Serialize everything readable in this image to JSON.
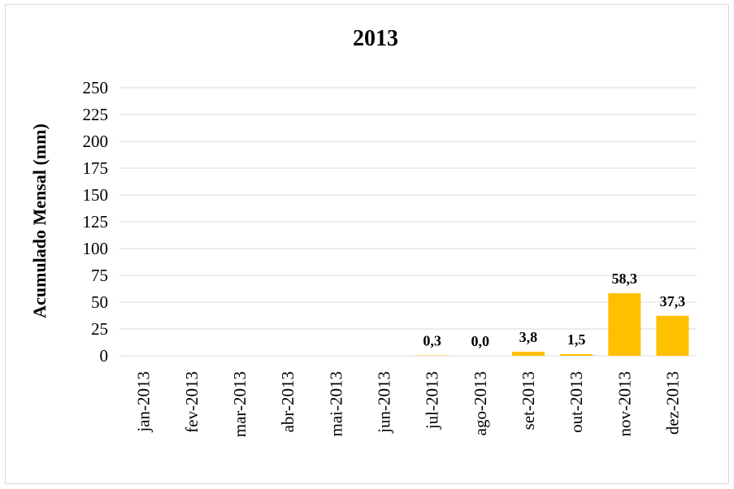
{
  "chart_data": {
    "type": "bar",
    "title": "2013",
    "xlabel": "",
    "ylabel": "Acumulado Mensal (mm)",
    "ylim": [
      0,
      250
    ],
    "yticks": [
      0,
      25,
      50,
      75,
      100,
      125,
      150,
      175,
      200,
      225,
      250
    ],
    "grid": true,
    "categories": [
      "jan-2013",
      "fev-2013",
      "mar-2013",
      "abr-2013",
      "mai-2013",
      "jun-2013",
      "jul-2013",
      "ago-2013",
      "set-2013",
      "out-2013",
      "nov-2013",
      "dez-2013"
    ],
    "values": [
      null,
      null,
      null,
      null,
      null,
      null,
      0.3,
      0.0,
      3.8,
      1.5,
      58.3,
      37.3
    ],
    "data_labels": [
      "",
      "",
      "",
      "",
      "",
      "",
      "0,3",
      "0,0",
      "3,8",
      "1,5",
      "58,3",
      "37,3"
    ],
    "bar_color": "#FFC000"
  }
}
